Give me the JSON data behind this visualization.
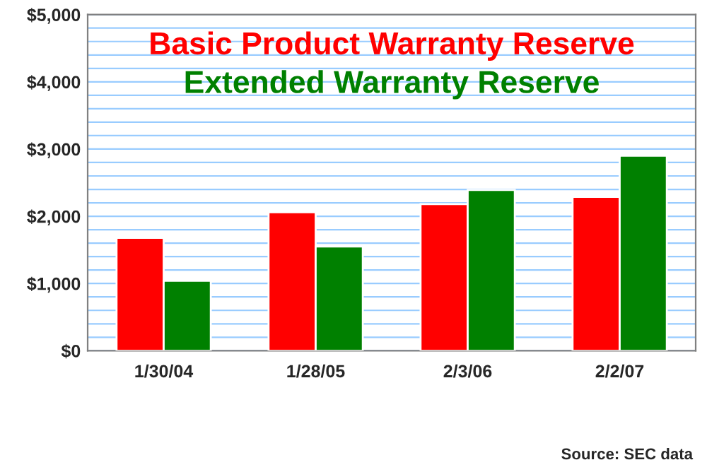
{
  "chart_data": {
    "type": "bar",
    "categories": [
      "1/30/04",
      "1/28/05",
      "2/3/06",
      "2/2/07"
    ],
    "series": [
      {
        "name": "Basic Product Warranty Reserve",
        "color": "#ff0000",
        "values": [
          1680,
          2060,
          2180,
          2290
        ]
      },
      {
        "name": "Extended Warranty Reserve",
        "color": "#008000",
        "values": [
          1040,
          1550,
          2390,
          2900
        ]
      }
    ],
    "ylim": [
      0,
      5000
    ],
    "yticks": [
      {
        "value": 0,
        "label": "$0"
      },
      {
        "value": 200,
        "label": null
      },
      {
        "value": 400,
        "label": null
      },
      {
        "value": 600,
        "label": null
      },
      {
        "value": 800,
        "label": null
      },
      {
        "value": 1000,
        "label": "$1,000"
      },
      {
        "value": 1200,
        "label": null
      },
      {
        "value": 1400,
        "label": null
      },
      {
        "value": 1600,
        "label": null
      },
      {
        "value": 1800,
        "label": null
      },
      {
        "value": 2000,
        "label": "$2,000"
      },
      {
        "value": 2200,
        "label": null
      },
      {
        "value": 2400,
        "label": null
      },
      {
        "value": 2600,
        "label": null
      },
      {
        "value": 2800,
        "label": null
      },
      {
        "value": 3000,
        "label": "$3,000"
      },
      {
        "value": 3200,
        "label": null
      },
      {
        "value": 3400,
        "label": null
      },
      {
        "value": 3600,
        "label": null
      },
      {
        "value": 3800,
        "label": null
      },
      {
        "value": 4000,
        "label": "$4,000"
      },
      {
        "value": 4200,
        "label": null
      },
      {
        "value": 4400,
        "label": null
      },
      {
        "value": 4600,
        "label": null
      },
      {
        "value": 4800,
        "label": null
      },
      {
        "value": 5000,
        "label": "$5,000"
      }
    ],
    "grid": "y",
    "annotations": [
      "Source: SEC data"
    ]
  }
}
